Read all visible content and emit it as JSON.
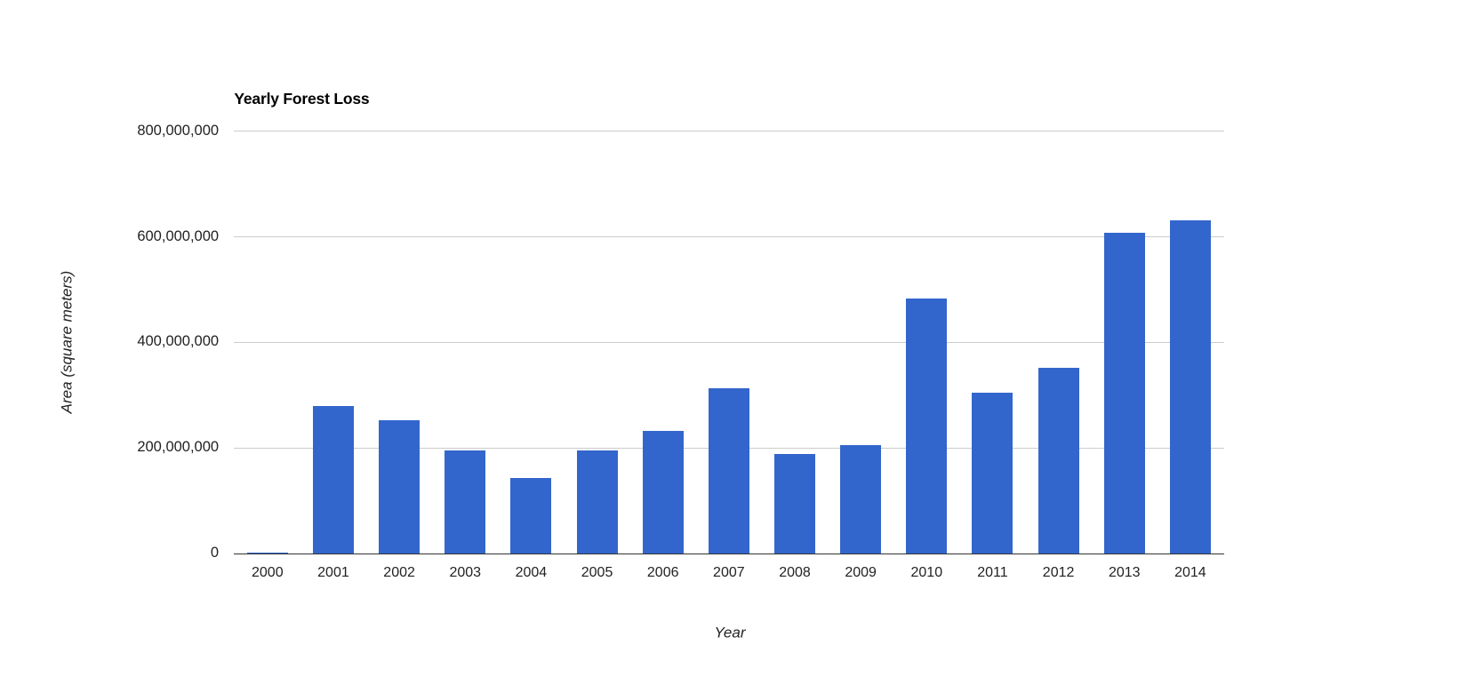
{
  "chart": {
    "colors": {
      "background": "#ffffff",
      "bar": "#3366cc",
      "gridline": "#cccccc",
      "baseline": "#333333",
      "title_text": "#000000",
      "tick_text": "#222222",
      "axis_title_text": "#222222"
    }
  },
  "chart_data": {
    "type": "bar",
    "title": "Yearly Forest Loss",
    "xlabel": "Year",
    "ylabel": "Area (square meters)",
    "categories": [
      "2000",
      "2001",
      "2002",
      "2003",
      "2004",
      "2005",
      "2006",
      "2007",
      "2008",
      "2009",
      "2010",
      "2011",
      "2012",
      "2013",
      "2014"
    ],
    "values": [
      2000000,
      279000000,
      252000000,
      195000000,
      143000000,
      195000000,
      232000000,
      313000000,
      188000000,
      205000000,
      483000000,
      304000000,
      351000000,
      607000000,
      631000000
    ],
    "ylim": [
      0,
      800000000
    ],
    "yticks": {
      "values": [
        0,
        200000000,
        400000000,
        600000000,
        800000000
      ],
      "labels": [
        "0",
        "200,000,000",
        "400,000,000",
        "600,000,000",
        "800,000,000"
      ]
    },
    "grid": true,
    "legend": "none",
    "series_color": "#3366cc"
  }
}
